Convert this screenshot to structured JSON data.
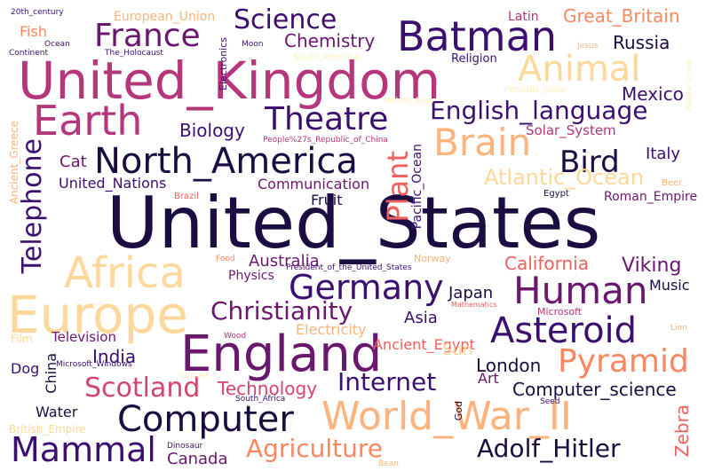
{
  "palette": {
    "darkest": "#1b0c41",
    "dark_purple": "#3b0f70",
    "purple": "#6a176e",
    "magenta": "#b5367a",
    "red_pink": "#d6446d",
    "coral": "#f0605d",
    "salmon": "#fb8761",
    "peach": "#fdb37b",
    "light_peach": "#fed89a",
    "pale_yellow": "#fcf0bb",
    "background": "#ffffff"
  },
  "words": [
    {
      "text": "United_States",
      "color": "#1b0c41"
    },
    {
      "text": "United_Kingdom",
      "color": "#b5367a"
    },
    {
      "text": "Europe",
      "color": "#fed89a"
    },
    {
      "text": "World_War_II",
      "color": "#fdb37b"
    },
    {
      "text": "England",
      "color": "#6a176e"
    },
    {
      "text": "Earth",
      "color": "#b5367a"
    },
    {
      "text": "Batman",
      "color": "#3b0f70"
    },
    {
      "text": "Africa",
      "color": "#fed89a"
    },
    {
      "text": "North_America",
      "color": "#1b0c41"
    },
    {
      "text": "Computer",
      "color": "#1b0c41"
    },
    {
      "text": "Human",
      "color": "#6a176e"
    },
    {
      "text": "Animal",
      "color": "#fed89a"
    },
    {
      "text": "Brain",
      "color": "#fdb37b"
    },
    {
      "text": "Theatre",
      "color": "#3b0f70"
    },
    {
      "text": "France",
      "color": "#6a176e"
    },
    {
      "text": "Germany",
      "color": "#3b0f70"
    },
    {
      "text": "Asteroid",
      "color": "#3b0f70"
    },
    {
      "text": "Pyramid",
      "color": "#fb8761"
    },
    {
      "text": "Mammal",
      "color": "#3b0f70"
    },
    {
      "text": "Science",
      "color": "#3b0f70"
    },
    {
      "text": "English_language",
      "color": "#3b0f70"
    },
    {
      "text": "Agriculture",
      "color": "#fb8761"
    },
    {
      "text": "Adolf_Hitler",
      "color": "#1b0c41"
    },
    {
      "text": "Scotland",
      "color": "#d6446d"
    },
    {
      "text": "Christianity",
      "color": "#6a176e"
    },
    {
      "text": "Bird",
      "color": "#1b0c41"
    },
    {
      "text": "Telephone",
      "color": "#3b0f70"
    },
    {
      "text": "Internet",
      "color": "#3b0f70"
    },
    {
      "text": "Plant",
      "color": "#f0605d"
    },
    {
      "text": "Atlantic_Ocean",
      "color": "#fed89a"
    },
    {
      "text": "Chemistry",
      "color": "#6a176e"
    },
    {
      "text": "Great_Britain",
      "color": "#fb8761"
    },
    {
      "text": "Russia",
      "color": "#1b0c41"
    },
    {
      "text": "Mexico",
      "color": "#3b0f70"
    },
    {
      "text": "Biology",
      "color": "#3b0f70"
    },
    {
      "text": "Viking",
      "color": "#6a176e"
    },
    {
      "text": "California",
      "color": "#f0605d"
    },
    {
      "text": "Australia",
      "color": "#6a176e"
    },
    {
      "text": "India",
      "color": "#3b0f70"
    },
    {
      "text": "Technology",
      "color": "#d6446d"
    },
    {
      "text": "Computer_science",
      "color": "#1b0c41"
    },
    {
      "text": "London",
      "color": "#1b0c41"
    },
    {
      "text": "Japan",
      "color": "#1b0c41"
    },
    {
      "text": "Asia",
      "color": "#3b0f70"
    },
    {
      "text": "Canada",
      "color": "#6a176e"
    },
    {
      "text": "Zebra",
      "color": "#f0605d"
    },
    {
      "text": "Italy",
      "color": "#3b0f70"
    },
    {
      "text": "Cat",
      "color": "#6a176e"
    },
    {
      "text": "Solar_System",
      "color": "#b5367a"
    },
    {
      "text": "United_Nations",
      "color": "#3b0f70"
    },
    {
      "text": "Communication",
      "color": "#6a176e"
    },
    {
      "text": "Fruit",
      "color": "#1b0c41"
    },
    {
      "text": "Pacific_Ocean",
      "color": "#3b0f70"
    },
    {
      "text": "Roman_Empire",
      "color": "#6a176e"
    },
    {
      "text": "Music",
      "color": "#1b0c41"
    },
    {
      "text": "Physics",
      "color": "#6a176e"
    },
    {
      "text": "Television",
      "color": "#6a176e"
    },
    {
      "text": "Electricity",
      "color": "#fdb37b"
    },
    {
      "text": "Ancient_Egypt",
      "color": "#f0605d"
    },
    {
      "text": "Sun",
      "color": "#fed89a"
    },
    {
      "text": "Art",
      "color": "#6a176e"
    },
    {
      "text": "Water",
      "color": "#1b0c41"
    },
    {
      "text": "China",
      "color": "#1b0c41"
    },
    {
      "text": "Dog",
      "color": "#3b0f70"
    },
    {
      "text": "Fish",
      "color": "#fb8761"
    },
    {
      "text": "Latin",
      "color": "#b5367a"
    },
    {
      "text": "European_Union",
      "color": "#fdb37b"
    },
    {
      "text": "Religion",
      "color": "#3b0f70"
    },
    {
      "text": "Ancient_Greece",
      "color": "#fdb37b"
    },
    {
      "text": "British_Empire",
      "color": "#fed89a"
    },
    {
      "text": "Film",
      "color": "#fed89a"
    },
    {
      "text": "Norway",
      "color": "#fdb37b"
    },
    {
      "text": "Microsoft",
      "color": "#b5367a"
    },
    {
      "text": "God",
      "color": "#1b0c41"
    },
    {
      "text": "Electronics",
      "color": "#3b0f70"
    },
    {
      "text": "South_America",
      "color": "#fcf0bb"
    },
    {
      "text": "Periodic_table",
      "color": "#fcf0bb"
    },
    {
      "text": "Middle_Ages",
      "color": "#fcf0bb"
    },
    {
      "text": "Brazil",
      "color": "#f0605d"
    },
    {
      "text": "Egypt",
      "color": "#1b0c41"
    },
    {
      "text": "Beer",
      "color": "#fdb37b"
    },
    {
      "text": "Lion",
      "color": "#fdb37b"
    },
    {
      "text": "Mathematics",
      "color": "#f0605d"
    },
    {
      "text": "Food",
      "color": "#fb8761"
    },
    {
      "text": "Wood",
      "color": "#b5367a"
    },
    {
      "text": "Culture",
      "color": "#fcf0bb"
    },
    {
      "text": "South_Africa",
      "color": "#3b0f70"
    },
    {
      "text": "Seed",
      "color": "#3b0f70"
    },
    {
      "text": "Dinosaur",
      "color": "#3b0f70"
    },
    {
      "text": "Bean",
      "color": "#fdb37b"
    },
    {
      "text": "Moon",
      "color": "#3b0f70"
    },
    {
      "text": "Jesus",
      "color": "#fdb37b"
    },
    {
      "text": "Whale_shark",
      "color": "#fcf0bb"
    },
    {
      "text": "20th_century",
      "color": "#3b0f70"
    },
    {
      "text": "Ocean",
      "color": "#3b0f70"
    },
    {
      "text": "Continent",
      "color": "#3b0f70"
    },
    {
      "text": "The_Holocaust",
      "color": "#3b0f70"
    },
    {
      "text": "People%27s_Republic_of_China",
      "color": "#b5367a"
    },
    {
      "text": "President_of_the_United_States",
      "color": "#3b0f70"
    },
    {
      "text": "Microsoft_Windows",
      "color": "#3b0f70"
    }
  ]
}
